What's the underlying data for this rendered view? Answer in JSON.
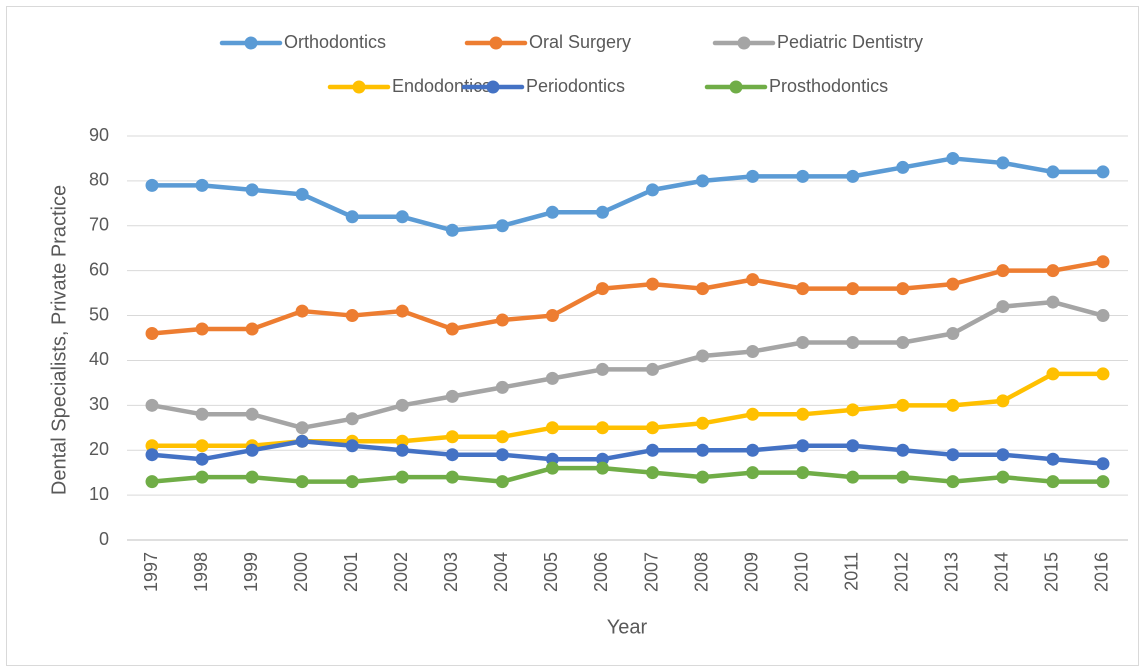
{
  "chart_data": {
    "type": "line",
    "x_label": "Year",
    "y_label": "Dental Specialists, Private Practice",
    "categories": [
      "1997",
      "1998",
      "1999",
      "2000",
      "2001",
      "2002",
      "2003",
      "2004",
      "2005",
      "2006",
      "2007",
      "2008",
      "2009",
      "2010",
      "2011",
      "2012",
      "2013",
      "2014",
      "2015",
      "2016"
    ],
    "series": [
      {
        "name": "Orthodontics",
        "color": "#5b9bd5",
        "values": [
          79,
          79,
          78,
          77,
          72,
          72,
          69,
          70,
          73,
          73,
          78,
          80,
          81,
          81,
          81,
          83,
          85,
          84,
          82,
          82
        ]
      },
      {
        "name": "Oral Surgery",
        "color": "#ed7d31",
        "values": [
          46,
          47,
          47,
          51,
          50,
          51,
          47,
          49,
          50,
          56,
          57,
          56,
          58,
          56,
          56,
          56,
          57,
          60,
          60,
          62
        ]
      },
      {
        "name": "Pediatric Dentistry",
        "color": "#a5a5a5",
        "values": [
          30,
          28,
          28,
          25,
          27,
          30,
          32,
          34,
          36,
          38,
          38,
          41,
          42,
          44,
          44,
          44,
          46,
          52,
          53,
          50
        ]
      },
      {
        "name": "Endodontics",
        "color": "#ffc000",
        "values": [
          21,
          21,
          21,
          22,
          22,
          22,
          23,
          23,
          25,
          25,
          25,
          26,
          28,
          28,
          29,
          30,
          30,
          31,
          37,
          37
        ]
      },
      {
        "name": "Periodontics",
        "color": "#4472c4",
        "values": [
          19,
          18,
          20,
          22,
          21,
          20,
          19,
          19,
          18,
          18,
          20,
          20,
          20,
          21,
          21,
          20,
          19,
          19,
          18,
          17
        ]
      },
      {
        "name": "Prosthodontics",
        "color": "#70ad47",
        "values": [
          13,
          14,
          14,
          13,
          13,
          14,
          14,
          13,
          16,
          16,
          15,
          14,
          15,
          15,
          14,
          14,
          13,
          14,
          13,
          13
        ]
      }
    ],
    "ylim": [
      0,
      90
    ],
    "yticks": [
      0,
      10,
      20,
      30,
      40,
      50,
      60,
      70,
      80,
      90
    ],
    "grid": true,
    "legend": "top"
  }
}
